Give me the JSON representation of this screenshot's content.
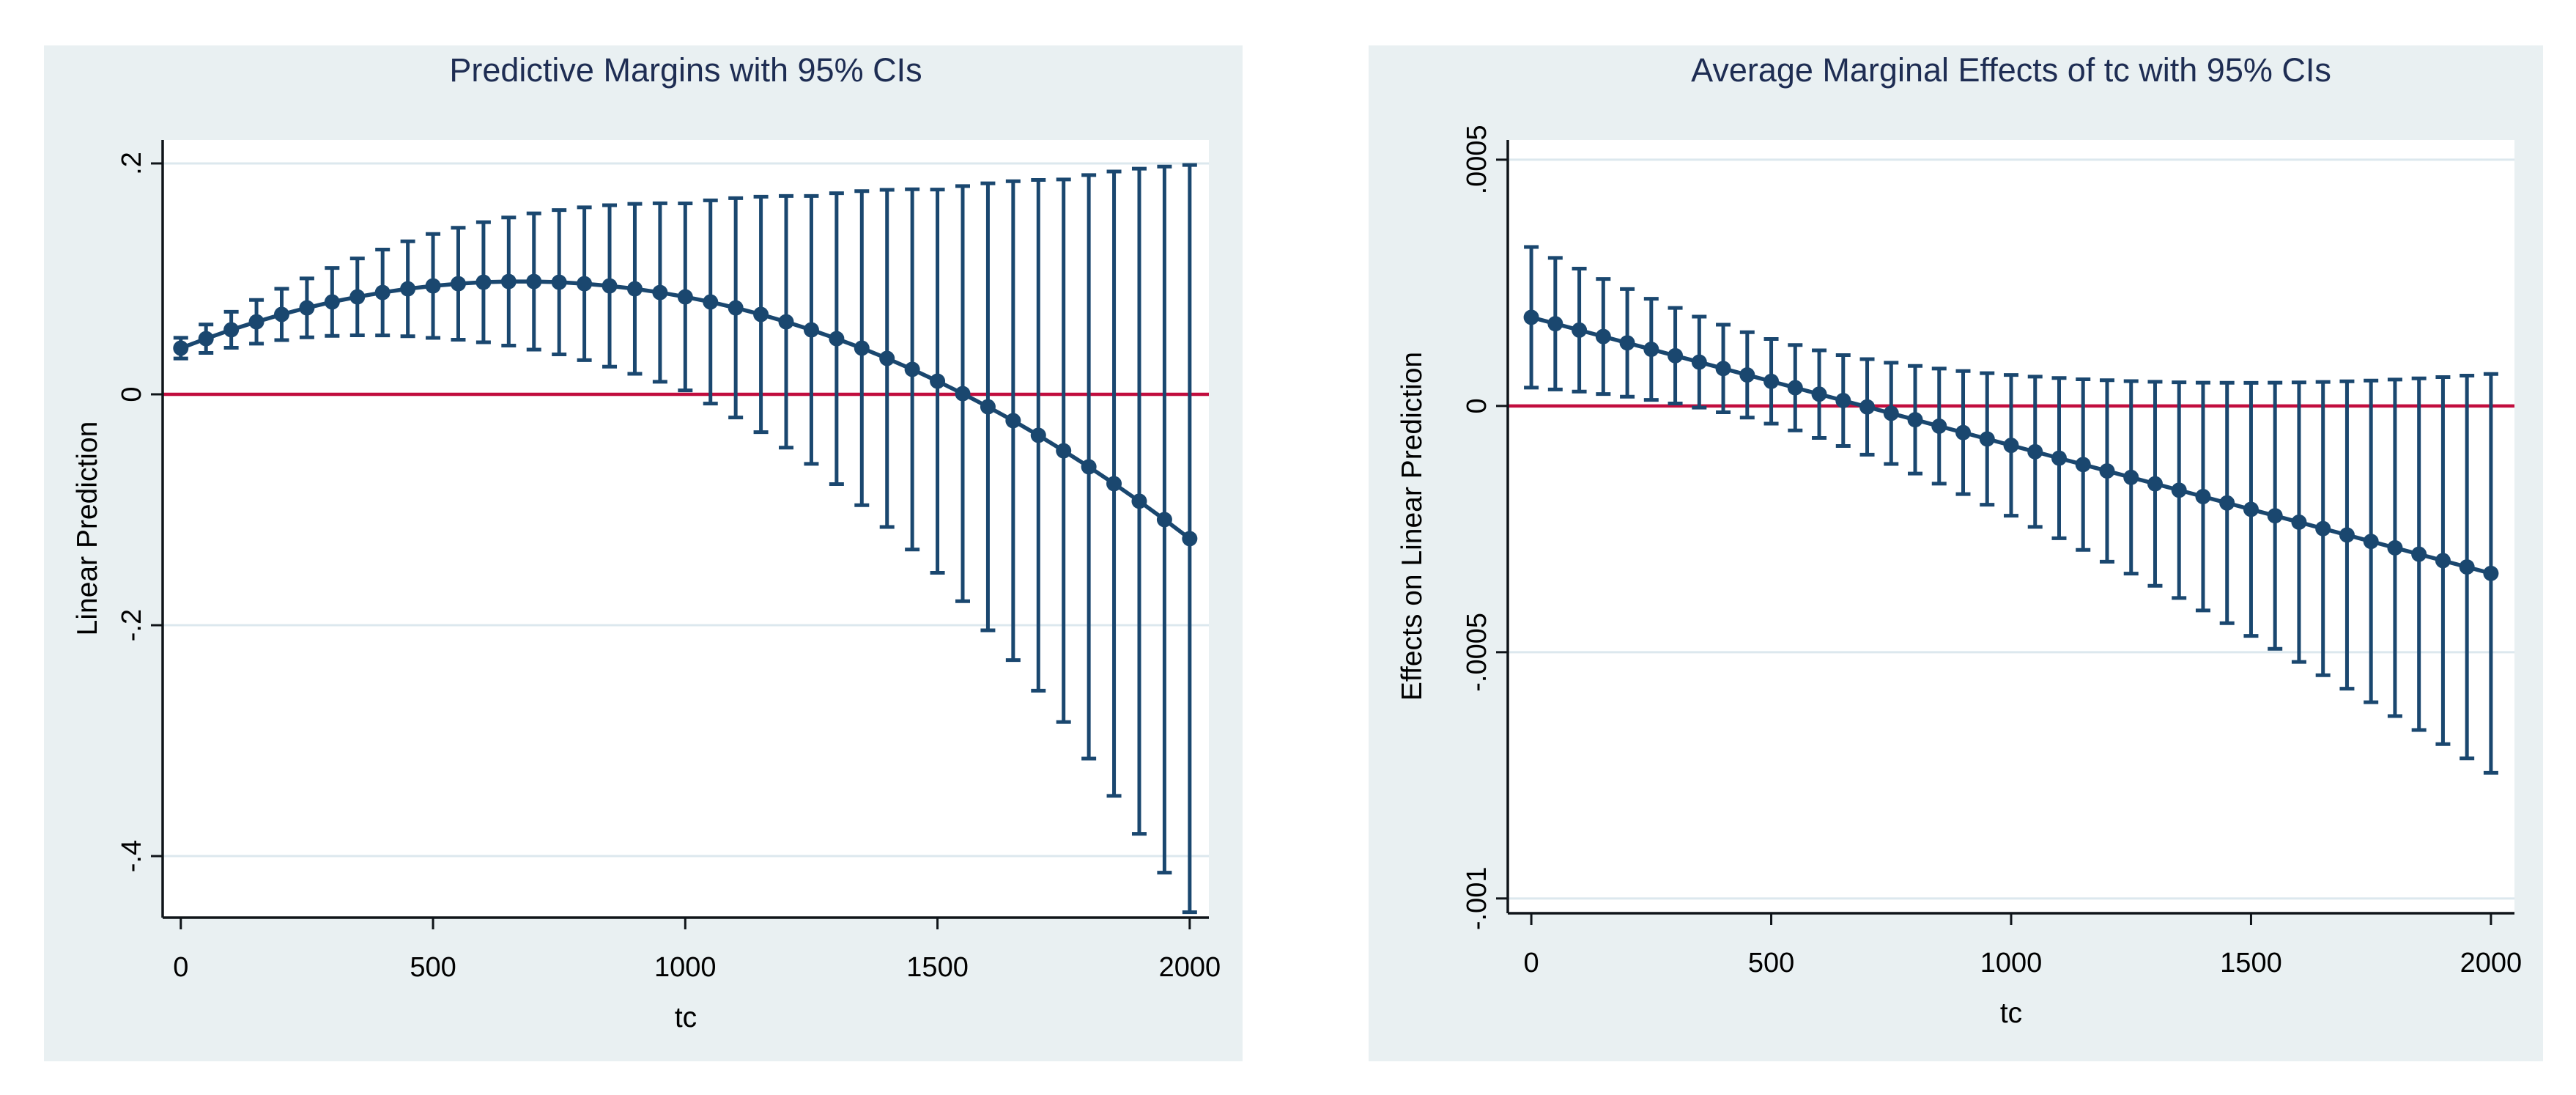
{
  "colors": {
    "panel_bg": "#E9F0F2",
    "plot_bg": "#FFFFFF",
    "grid": "#DCE8EE",
    "zero_line": "#C10D3E",
    "series_navy": "#1A476F",
    "axis_line": "#0F1419",
    "title_text": "#1E2D53",
    "tick_text": "#000000"
  },
  "chart_data": [
    {
      "type": "line",
      "subtype": "errorbar-margins-plot",
      "title": "Predictive Margins with 95% CIs",
      "xlabel": "tc",
      "ylabel": "Linear Prediction",
      "legend_position": "none",
      "grid": "horizontal",
      "x_domain": [
        -36,
        2038
      ],
      "y_domain": [
        -0.4533,
        0.2203
      ],
      "x_ticks": [
        {
          "value": 0,
          "label": "0"
        },
        {
          "value": 500,
          "label": "500"
        },
        {
          "value": 1000,
          "label": "1000"
        },
        {
          "value": 1500,
          "label": "1500"
        },
        {
          "value": 2000,
          "label": "2000"
        }
      ],
      "y_ticks": [
        {
          "value": 0.2,
          "label": ".2"
        },
        {
          "value": 0,
          "label": "0"
        },
        {
          "value": -0.2,
          "label": "-.2"
        },
        {
          "value": -0.4,
          "label": "-.4"
        }
      ],
      "zero_line": 0,
      "x": [
        0,
        50,
        100,
        150,
        200,
        250,
        300,
        350,
        400,
        450,
        500,
        550,
        600,
        650,
        700,
        750,
        800,
        850,
        900,
        950,
        1000,
        1050,
        1100,
        1150,
        1200,
        1250,
        1300,
        1350,
        1400,
        1450,
        1500,
        1550,
        1600,
        1650,
        1700,
        1750,
        1800,
        1850,
        1900,
        1950,
        2000
      ],
      "y": [
        0.04,
        0.0482,
        0.0559,
        0.0628,
        0.0692,
        0.0749,
        0.08,
        0.0844,
        0.0882,
        0.0914,
        0.0939,
        0.0958,
        0.0971,
        0.0977,
        0.0977,
        0.0971,
        0.0958,
        0.0939,
        0.0914,
        0.0882,
        0.0844,
        0.08,
        0.0749,
        0.0692,
        0.0628,
        0.0558,
        0.0482,
        0.04,
        0.0311,
        0.0216,
        0.0114,
        0.0006,
        -0.0108,
        -0.0228,
        -0.0355,
        -0.0489,
        -0.0628,
        -0.0774,
        -0.0926,
        -0.1085,
        -0.125
      ],
      "ci_low": [
        0.031,
        0.0359,
        0.0403,
        0.0439,
        0.047,
        0.0494,
        0.0506,
        0.0511,
        0.051,
        0.0503,
        0.0489,
        0.0473,
        0.0451,
        0.0422,
        0.0387,
        0.0346,
        0.0296,
        0.024,
        0.0178,
        0.0109,
        0.0034,
        -0.008,
        -0.0201,
        -0.0328,
        -0.0462,
        -0.0602,
        -0.0778,
        -0.096,
        -0.1149,
        -0.1344,
        -0.1546,
        -0.1792,
        -0.2044,
        -0.2302,
        -0.2567,
        -0.2839,
        -0.3155,
        -0.3478,
        -0.3807,
        -0.4143,
        -0.4486
      ],
      "ci_high": [
        0.049,
        0.0605,
        0.0715,
        0.0817,
        0.0914,
        0.1004,
        0.1094,
        0.1177,
        0.1254,
        0.1325,
        0.1389,
        0.1443,
        0.1491,
        0.1532,
        0.1567,
        0.1596,
        0.162,
        0.1638,
        0.165,
        0.1655,
        0.1654,
        0.168,
        0.1699,
        0.1712,
        0.1718,
        0.1718,
        0.1742,
        0.176,
        0.1771,
        0.1776,
        0.1774,
        0.1804,
        0.1828,
        0.1846,
        0.1857,
        0.1861,
        0.1899,
        0.193,
        0.1955,
        0.1973,
        0.1986
      ]
    },
    {
      "type": "line",
      "subtype": "errorbar-margins-plot",
      "title": "Average Marginal Effects of tc with 95% CIs",
      "xlabel": "tc",
      "ylabel": "Effects on Linear Prediction",
      "legend_position": "none",
      "grid": "horizontal",
      "x_domain": [
        -49,
        2049
      ],
      "y_domain": [
        -0.00103,
        0.00054
      ],
      "x_ticks": [
        {
          "value": 0,
          "label": "0"
        },
        {
          "value": 500,
          "label": "500"
        },
        {
          "value": 1000,
          "label": "1000"
        },
        {
          "value": 1500,
          "label": "1500"
        },
        {
          "value": 2000,
          "label": "2000"
        }
      ],
      "y_ticks": [
        {
          "value": 0.0005,
          "label": ".0005"
        },
        {
          "value": 0,
          "label": "0"
        },
        {
          "value": -0.0005,
          "label": "-.0005"
        },
        {
          "value": -0.001,
          "label": "-.001"
        }
      ],
      "zero_line": 0,
      "x": [
        0,
        50,
        100,
        150,
        200,
        250,
        300,
        350,
        400,
        450,
        500,
        550,
        600,
        650,
        700,
        750,
        800,
        850,
        900,
        950,
        1000,
        1050,
        1100,
        1150,
        1200,
        1250,
        1300,
        1350,
        1400,
        1450,
        1500,
        1550,
        1600,
        1650,
        1700,
        1750,
        1800,
        1850,
        1900,
        1950,
        2000
      ],
      "y": [
        0.00018,
        0.000167,
        0.000154,
        0.000141,
        0.000128,
        0.000115,
        0.000102,
        8.9e-05,
        7.6e-05,
        6.3e-05,
        5e-05,
        3.7e-05,
        2.4e-05,
        1.1e-05,
        -2e-06,
        -1.5e-05,
        -2.8e-05,
        -4.1e-05,
        -5.4e-05,
        -6.7e-05,
        -8e-05,
        -9.3e-05,
        -0.000106,
        -0.000119,
        -0.000132,
        -0.000145,
        -0.000158,
        -0.000171,
        -0.000184,
        -0.000197,
        -0.00021,
        -0.000223,
        -0.000236,
        -0.000249,
        -0.000262,
        -0.000275,
        -0.000288,
        -0.000301,
        -0.000314,
        -0.000327,
        -0.00034
      ],
      "ci_low": [
        3.72e-05,
        3.34e-05,
        2.91e-05,
        2.42e-05,
        1.87e-05,
        1.23e-05,
        5e-06,
        -3.3e-06,
        -1.29e-05,
        -2.37e-05,
        -3.6e-05,
        -4.97e-05,
        -6.49e-05,
        -8.13e-05,
        -9.9e-05,
        -0.0001177,
        -0.0001373,
        -0.0001578,
        -0.0001789,
        -0.0002006,
        -0.0002228,
        -0.0002455,
        -0.0002687,
        -0.0002922,
        -0.0003162,
        -0.0003404,
        -0.0003651,
        -0.00039,
        -0.0004153,
        -0.000441,
        -0.0004669,
        -0.0004932,
        -0.0005198,
        -0.0005467,
        -0.000574,
        -0.0006016,
        -0.0006296,
        -0.0006579,
        -0.0006866,
        -0.0007156,
        -0.0007449
      ],
      "ci_high": [
        0.0003228,
        0.0003006,
        0.0002789,
        0.0002578,
        0.0002373,
        0.0002177,
        0.000199,
        0.0001813,
        0.0001649,
        0.0001497,
        0.000136,
        0.0001237,
        0.0001129,
        0.0001033,
        9.5e-05,
        8.77e-05,
        8.13e-05,
        7.58e-05,
        7.09e-05,
        6.66e-05,
        6.28e-05,
        5.95e-05,
        5.67e-05,
        5.42e-05,
        5.22e-05,
        5.04e-05,
        4.91e-05,
        4.8e-05,
        4.73e-05,
        4.7e-05,
        4.69e-05,
        4.72e-05,
        4.78e-05,
        4.87e-05,
        5e-05,
        5.16e-05,
        5.36e-05,
        5.59e-05,
        5.86e-05,
        6.16e-05,
        6.49e-05
      ]
    }
  ]
}
